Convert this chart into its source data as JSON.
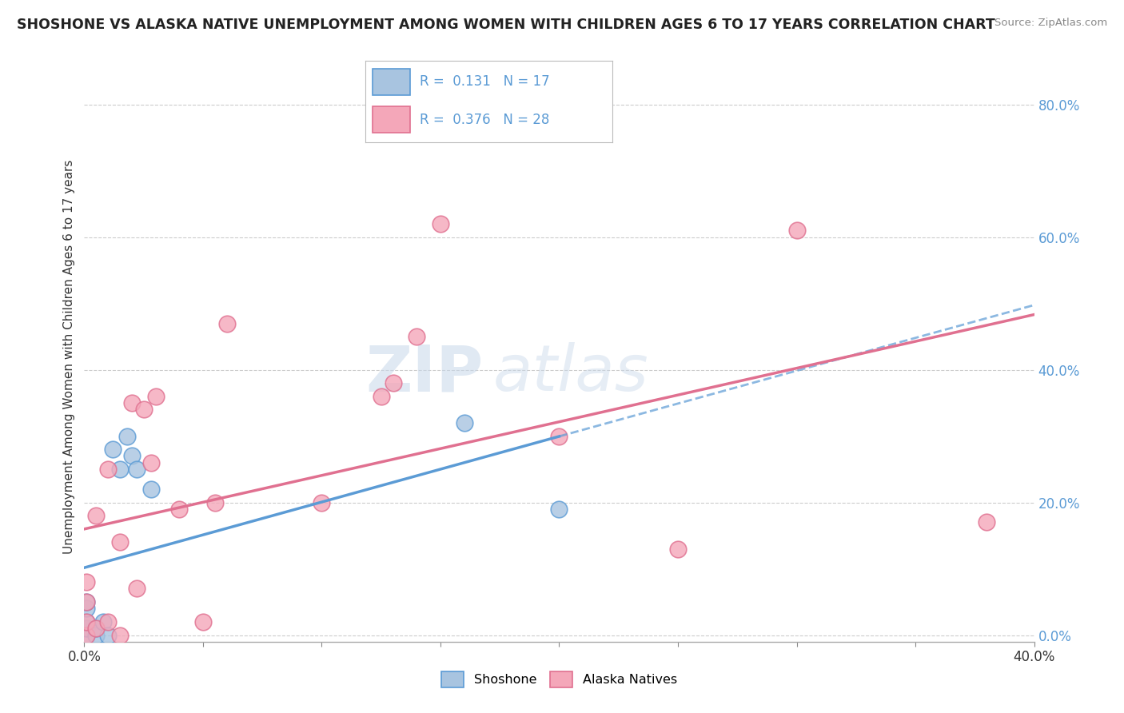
{
  "title": "SHOSHONE VS ALASKA NATIVE UNEMPLOYMENT AMONG WOMEN WITH CHILDREN AGES 6 TO 17 YEARS CORRELATION CHART",
  "source": "Source: ZipAtlas.com",
  "ylabel": "Unemployment Among Women with Children Ages 6 to 17 years",
  "xlim": [
    0.0,
    0.4
  ],
  "ylim": [
    -0.01,
    0.85
  ],
  "yticks": [
    0.0,
    0.2,
    0.4,
    0.6,
    0.8
  ],
  "ytick_labels_right": [
    "0.0%",
    "20.0%",
    "40.0%",
    "60.0%",
    "80.0%"
  ],
  "xtick_positions": [
    0.0,
    0.05,
    0.1,
    0.15,
    0.2,
    0.25,
    0.3,
    0.35,
    0.4
  ],
  "xtick_labels": [
    "0.0%",
    "",
    "",
    "",
    "",
    "",
    "",
    "",
    "40.0%"
  ],
  "shoshone_color": "#a8c4e0",
  "alaska_color": "#f4a7b9",
  "shoshone_edge": "#5b9bd5",
  "alaska_edge": "#e07090",
  "legend_label1": "Shoshone",
  "legend_label2": "Alaska Natives",
  "R1": "0.131",
  "N1": "17",
  "R2": "0.376",
  "N2": "28",
  "shoshone_x": [
    0.001,
    0.001,
    0.001,
    0.001,
    0.001,
    0.005,
    0.005,
    0.008,
    0.01,
    0.012,
    0.015,
    0.018,
    0.02,
    0.022,
    0.028,
    0.16,
    0.2
  ],
  "shoshone_y": [
    0.0,
    0.01,
    0.02,
    0.04,
    0.05,
    0.0,
    0.01,
    0.02,
    0.0,
    0.28,
    0.25,
    0.3,
    0.27,
    0.25,
    0.22,
    0.32,
    0.19
  ],
  "alaska_x": [
    0.001,
    0.001,
    0.001,
    0.001,
    0.005,
    0.005,
    0.01,
    0.01,
    0.015,
    0.015,
    0.02,
    0.022,
    0.025,
    0.028,
    0.03,
    0.04,
    0.05,
    0.055,
    0.06,
    0.1,
    0.125,
    0.13,
    0.14,
    0.15,
    0.2,
    0.25,
    0.3,
    0.38
  ],
  "alaska_y": [
    0.0,
    0.02,
    0.05,
    0.08,
    0.01,
    0.18,
    0.02,
    0.25,
    0.0,
    0.14,
    0.35,
    0.07,
    0.34,
    0.26,
    0.36,
    0.19,
    0.02,
    0.2,
    0.47,
    0.2,
    0.36,
    0.38,
    0.45,
    0.62,
    0.3,
    0.13,
    0.61,
    0.17
  ],
  "watermark_zip": "ZIP",
  "watermark_atlas": "atlas",
  "background_color": "#ffffff",
  "grid_color": "#cccccc",
  "blue_text_color": "#5b9bd5",
  "axis_color": "#888888"
}
